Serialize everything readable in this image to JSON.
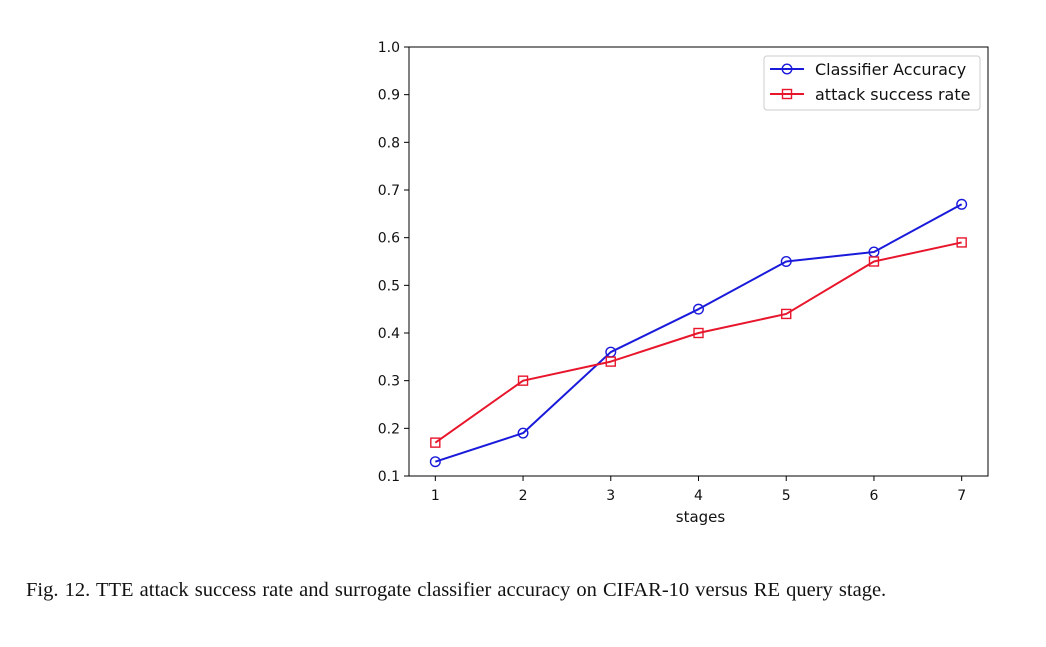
{
  "chart_data": {
    "type": "line",
    "title": "",
    "xlabel": "stages",
    "ylabel": "",
    "x": [
      1,
      2,
      3,
      4,
      5,
      6,
      7
    ],
    "xlim": [
      0.7,
      7.3
    ],
    "ylim": [
      0.1,
      1.0
    ],
    "xticks": [
      "1",
      "2",
      "3",
      "4",
      "5",
      "6",
      "7"
    ],
    "yticks": [
      "0.1",
      "0.2",
      "0.3",
      "0.4",
      "0.5",
      "0.6",
      "0.7",
      "0.8",
      "0.9",
      "1.0"
    ],
    "grid": false,
    "legend_position": "top-right",
    "series": [
      {
        "name": "Classifier Accuracy",
        "marker": "circle",
        "color": "#1a1adb",
        "values": [
          0.13,
          0.19,
          0.36,
          0.45,
          0.55,
          0.57,
          0.67
        ]
      },
      {
        "name": "attack success rate",
        "marker": "square",
        "color": "#e8162c",
        "values": [
          0.17,
          0.3,
          0.34,
          0.4,
          0.44,
          0.55,
          0.59
        ]
      }
    ]
  },
  "caption": "Fig. 12.  TTE attack success rate and surrogate classifier accuracy on CIFAR-10 versus RE query stage."
}
